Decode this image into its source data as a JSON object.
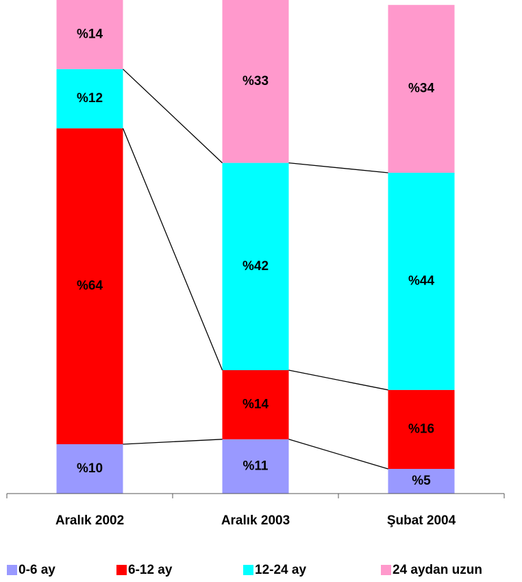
{
  "chart_data": {
    "type": "stacked_bar",
    "categories": [
      "Aralık 2002",
      "Aralık 2003",
      "Şubat 2004"
    ],
    "series": [
      {
        "name": "0-6 ay",
        "color": "#9999ff",
        "values": [
          10,
          11,
          5
        ],
        "value_labels": [
          "%10",
          "%11",
          "%5"
        ]
      },
      {
        "name": "6-12 ay",
        "color": "#ff0000",
        "values": [
          64,
          14,
          16
        ],
        "value_labels": [
          "%64",
          "%14",
          "%16"
        ]
      },
      {
        "name": "12-24 ay",
        "color": "#00ffff",
        "values": [
          12,
          42,
          44
        ],
        "value_labels": [
          "%12",
          "%42",
          "%44"
        ]
      },
      {
        "name": "24 aydan uzun",
        "color": "#ff99cc",
        "values": [
          14,
          33,
          34
        ],
        "value_labels": [
          "%14",
          "%33",
          "%34"
        ]
      }
    ],
    "ylim": [
      0,
      100
    ]
  }
}
